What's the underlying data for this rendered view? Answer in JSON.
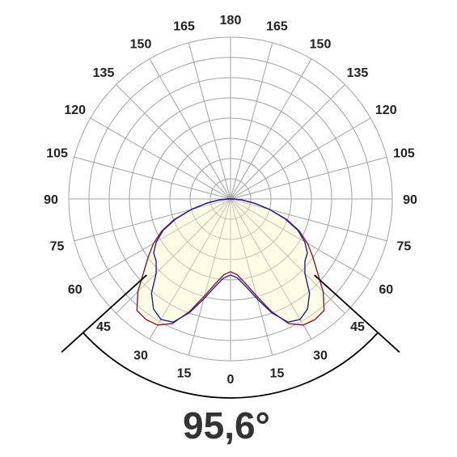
{
  "chart_data": {
    "type": "polar",
    "title": "",
    "angle_labels": {
      "left": [
        "0",
        "15",
        "30",
        "45",
        "60",
        "75",
        "90",
        "105",
        "120",
        "135",
        "150",
        "165",
        "180"
      ],
      "right": [
        "15",
        "30",
        "45",
        "60",
        "75",
        "90",
        "105",
        "120",
        "135",
        "150",
        "165"
      ]
    },
    "radial_rings": 8,
    "grid": true,
    "beam_angle_label": "95,6°",
    "beam_angle_deg": 95.6,
    "colors": {
      "grid": "#a6a6a6",
      "fill": "#fdfbe0",
      "series_red": "#8b1a2b",
      "series_blue": "#1f1f9c",
      "beam_lines": "#000000"
    },
    "series": [
      {
        "color": "#8b1a2b",
        "polar_points": [
          [
            0,
            0.45
          ],
          [
            5,
            0.47
          ],
          [
            10,
            0.53
          ],
          [
            15,
            0.62
          ],
          [
            20,
            0.74
          ],
          [
            25,
            0.85
          ],
          [
            30,
            0.9
          ],
          [
            35,
            0.91
          ],
          [
            40,
            0.9
          ],
          [
            45,
            0.81
          ],
          [
            50,
            0.7
          ],
          [
            55,
            0.62
          ],
          [
            60,
            0.55
          ],
          [
            65,
            0.47
          ],
          [
            70,
            0.37
          ],
          [
            75,
            0.25
          ],
          [
            80,
            0.15
          ],
          [
            85,
            0.07
          ],
          [
            90,
            0.02
          ]
        ]
      },
      {
        "color": "#1f1f9c",
        "polar_points": [
          [
            0,
            0.47
          ],
          [
            5,
            0.49
          ],
          [
            10,
            0.55
          ],
          [
            15,
            0.64
          ],
          [
            20,
            0.75
          ],
          [
            25,
            0.84
          ],
          [
            30,
            0.86
          ],
          [
            35,
            0.83
          ],
          [
            40,
            0.76
          ],
          [
            45,
            0.65
          ],
          [
            50,
            0.6
          ],
          [
            55,
            0.58
          ],
          [
            60,
            0.53
          ],
          [
            65,
            0.46
          ],
          [
            70,
            0.36
          ],
          [
            75,
            0.25
          ],
          [
            80,
            0.15
          ],
          [
            85,
            0.07
          ],
          [
            90,
            0.02
          ]
        ]
      }
    ]
  }
}
